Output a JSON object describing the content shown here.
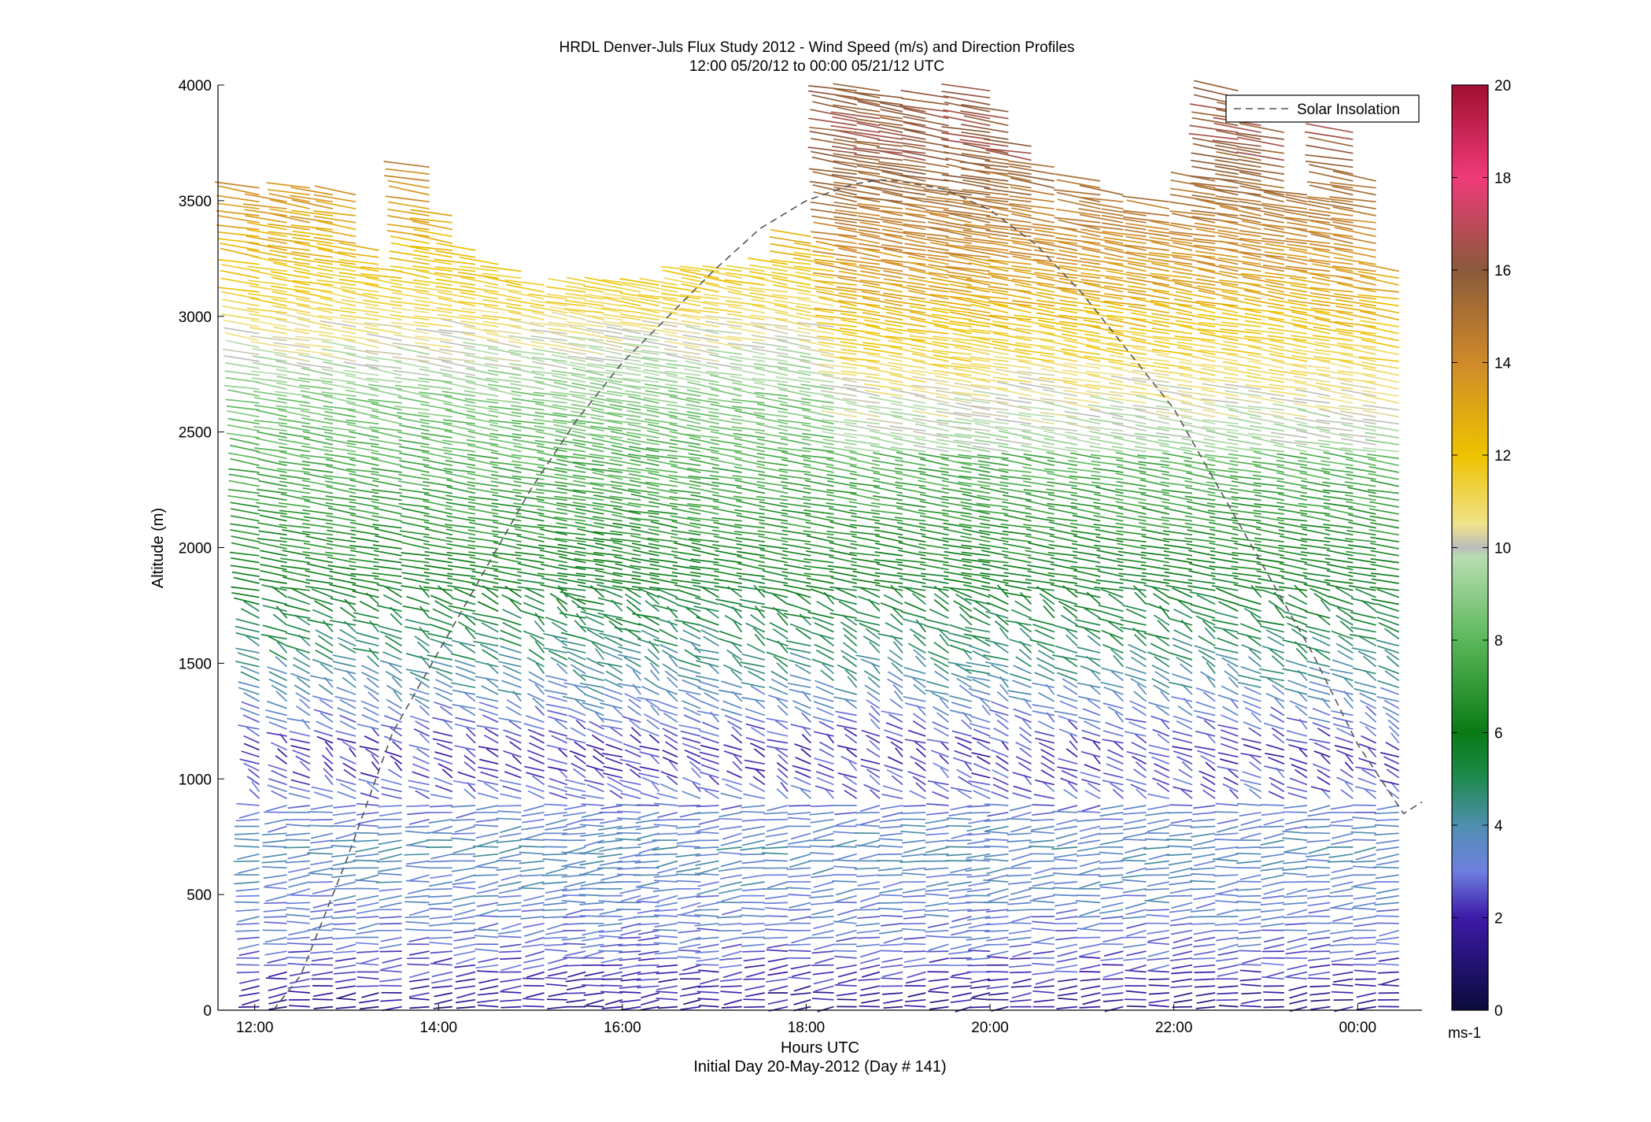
{
  "chart_data": {
    "type": "barbs",
    "title": "HRDL Denver-Juls Flux Study 2012 - Wind Speed (m/s) and Direction Profiles",
    "subtitle": "12:00 05/20/12 to 00:00 05/21/12  UTC",
    "xlabel": "Hours UTC",
    "xlabel2": "Initial Day 20-May-2012 (Day # 141)",
    "ylabel": "Altitude (m)",
    "xlim": [
      11.6,
      24.7
    ],
    "ylim": [
      0,
      4000
    ],
    "x_ticks": [
      12,
      14,
      16,
      18,
      20,
      22,
      24
    ],
    "x_tick_labels": [
      "12:00",
      "14:00",
      "16:00",
      "18:00",
      "20:00",
      "22:00",
      "00:00"
    ],
    "y_ticks": [
      0,
      500,
      1000,
      1500,
      2000,
      2500,
      3000,
      3500,
      4000
    ],
    "y_tick_labels": [
      "0",
      "500",
      "1000",
      "1500",
      "2000",
      "2500",
      "3000",
      "3500",
      "4000"
    ],
    "legend": {
      "label": "Solar Insolation",
      "placement": "top-right",
      "line_color": "#555555",
      "line_style": "dashed"
    },
    "solar_insolation": {
      "x": [
        12.2,
        12.5,
        13,
        13.5,
        14,
        14.5,
        15,
        15.5,
        16,
        16.5,
        17,
        17.5,
        18,
        18.5,
        18.8,
        19,
        19.5,
        20,
        20.5,
        21,
        21.5,
        22,
        22.5,
        23,
        23.5,
        24,
        24.5,
        24.7
      ],
      "y": [
        0,
        150,
        650,
        1200,
        1550,
        1900,
        2250,
        2550,
        2800,
        3000,
        3200,
        3380,
        3500,
        3570,
        3590,
        3585,
        3550,
        3460,
        3310,
        3100,
        2850,
        2600,
        2250,
        1900,
        1550,
        1150,
        850,
        900
      ]
    },
    "colorbar": {
      "label": "ms-1",
      "range": [
        0,
        20
      ],
      "ticks": [
        0,
        2,
        4,
        6,
        8,
        10,
        12,
        14,
        16,
        18,
        20
      ],
      "tick_labels": [
        "0",
        "2",
        "4",
        "6",
        "8",
        "10",
        "12",
        "14",
        "16",
        "18",
        "20"
      ],
      "stops": [
        {
          "value": 0,
          "color": "#0b0b3b"
        },
        {
          "value": 2,
          "color": "#3c1aa8"
        },
        {
          "value": 3,
          "color": "#6f7fe0"
        },
        {
          "value": 4,
          "color": "#4f8fb0"
        },
        {
          "value": 5,
          "color": "#1f8a4f"
        },
        {
          "value": 6,
          "color": "#0a7a14"
        },
        {
          "value": 8,
          "color": "#5bb85b"
        },
        {
          "value": 9.8,
          "color": "#b8ddb0"
        },
        {
          "value": 10,
          "color": "#bcbcbc"
        },
        {
          "value": 10.5,
          "color": "#efe28a"
        },
        {
          "value": 12,
          "color": "#eec300"
        },
        {
          "value": 14,
          "color": "#d08a2a"
        },
        {
          "value": 16,
          "color": "#8a5a3a"
        },
        {
          "value": 18,
          "color": "#f03a7a"
        },
        {
          "value": 20,
          "color": "#a01030"
        }
      ]
    },
    "profiles": {
      "times": [
        12.05,
        12.35,
        12.6,
        12.85,
        13.1,
        13.35,
        13.6,
        13.9,
        14.15,
        14.4,
        14.65,
        14.9,
        15.15,
        15.4,
        15.6,
        15.8,
        16.0,
        16.2,
        16.4,
        16.6,
        16.85,
        17.05,
        17.3,
        17.55,
        17.8,
        18.05,
        18.3,
        18.55,
        18.8,
        19.05,
        19.3,
        19.55,
        19.8,
        20.0,
        20.2,
        20.45,
        20.7,
        20.95,
        21.2,
        21.45,
        21.7,
        21.95,
        22.2,
        22.45,
        22.7,
        22.95,
        23.2,
        23.45,
        23.7,
        23.95,
        24.2,
        24.45
      ],
      "max_altitude": [
        3560,
        3500,
        3580,
        3550,
        3530,
        3300,
        3200,
        3650,
        3450,
        3300,
        3250,
        3200,
        3150,
        3100,
        3150,
        3150,
        3150,
        3150,
        3150,
        3150,
        3200,
        3220,
        3200,
        3200,
        3250,
        3350,
        3300,
        4000,
        4000,
        3950,
        3900,
        3950,
        3550,
        4000,
        3900,
        3750,
        3650,
        3400,
        3600,
        3550,
        3450,
        3500,
        3400,
        3600,
        4000,
        3900,
        3800,
        3550,
        3500,
        3800,
        3600,
        3200
      ],
      "range_gate_spacing_m": 30,
      "speed_regimes_by_altitude": [
        {
          "altitude": 0,
          "speed": 1.5
        },
        {
          "altitude": 300,
          "speed": 3.0
        },
        {
          "altitude": 700,
          "speed": 3.8
        },
        {
          "altitude": 1100,
          "speed": 2.2
        },
        {
          "altitude": 1500,
          "speed": 4.5
        },
        {
          "altitude": 2000,
          "speed": 6.5
        },
        {
          "altitude": 2600,
          "speed": 8.5
        },
        {
          "altitude": 3100,
          "speed": 11.5
        },
        {
          "altitude": 3700,
          "speed": 14.5
        }
      ]
    }
  }
}
